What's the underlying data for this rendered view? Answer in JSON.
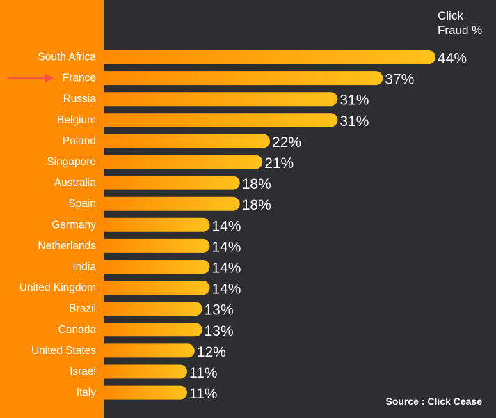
{
  "colors": {
    "panel": "#ff8c00",
    "background": "#2e2e30",
    "bar_start": "#ff8a00",
    "bar_end": "#ffc21c",
    "text": "#ffffff",
    "arrow": "#ff4a4a"
  },
  "header": {
    "line1": "Click",
    "line2": "Fraud %"
  },
  "source": "Source : Click Cease",
  "highlight": {
    "category": "France",
    "marker": "arrow"
  },
  "chart_data": {
    "type": "bar",
    "orientation": "horizontal",
    "categories": [
      "South Africa",
      "France",
      "Russia",
      "Belgium",
      "Poland",
      "Singapore",
      "Australia",
      "Spain",
      "Germany",
      "Netherlands",
      "India",
      "United Kingdom",
      "Brazil",
      "Canada",
      "United States",
      "Israel",
      "Italy"
    ],
    "values": [
      44,
      37,
      31,
      31,
      22,
      21,
      18,
      18,
      14,
      14,
      14,
      14,
      13,
      13,
      12,
      11,
      11
    ],
    "value_labels": [
      "44%",
      "37%",
      "31%",
      "31%",
      "22%",
      "21%",
      "18%",
      "18%",
      "14%",
      "14%",
      "14%",
      "14%",
      "13%",
      "13%",
      "12%",
      "11%",
      "11%"
    ],
    "unit": "%",
    "xlim": [
      0,
      44
    ],
    "grid": false,
    "legend": "none"
  }
}
